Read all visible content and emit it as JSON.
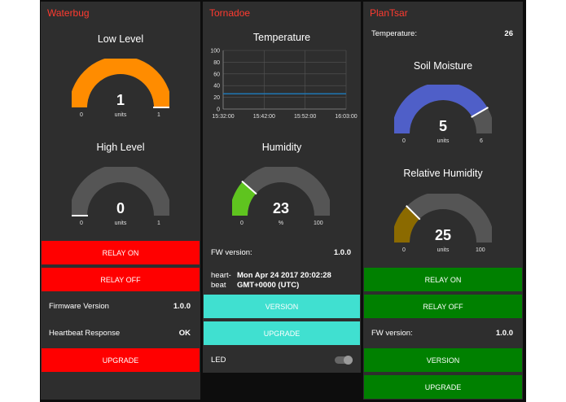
{
  "colors": {
    "accent": "#ff3b30",
    "relay_red": "#ff0000",
    "teal": "#40e0d0",
    "green": "#008000",
    "gauge_orange": "#ff8c00",
    "gauge_green": "#5fc41f",
    "gauge_blue": "#4f5fc8",
    "gauge_olive": "#8b6a00",
    "gauge_track": "#555555",
    "series_line": "#1f77b4"
  },
  "waterbug": {
    "title": "Waterbug",
    "low_level": {
      "label": "Low Level",
      "value": "1",
      "units": "units",
      "min": "0",
      "max": "1",
      "fraction": 1.0
    },
    "high_level": {
      "label": "High Level",
      "value": "0",
      "units": "units",
      "min": "0",
      "max": "1",
      "fraction": 0.0
    },
    "relay_on": "RELAY ON",
    "relay_off": "RELAY OFF",
    "firmware": {
      "label": "Firmware Version",
      "value": "1.0.0"
    },
    "heartbeat": {
      "label": "Heartbeat Response",
      "value": "OK"
    },
    "upgrade": "UPGRADE"
  },
  "tornadoe": {
    "title": "Tornadoe",
    "temperature": {
      "label": "Temperature"
    },
    "humidity": {
      "label": "Humidity",
      "value": "23",
      "units": "%",
      "min": "0",
      "max": "100",
      "fraction": 0.23
    },
    "fw": {
      "label": "FW version:",
      "value": "1.0.0"
    },
    "heartbeat": {
      "label_line1": "heart-",
      "label_line2": "beat",
      "value_line1": "Mon Apr 24 2017 20:02:28",
      "value_line2": "GMT+0000 (UTC)"
    },
    "version": "VERSION",
    "upgrade": "UPGRADE",
    "led": {
      "label": "LED",
      "on": false
    }
  },
  "plantsar": {
    "title": "PlanTsar",
    "temperature": {
      "label": "Temperature:",
      "value": "26"
    },
    "soil_moisture": {
      "label": "Soil Moisture",
      "value": "5",
      "units": "units",
      "min": "0",
      "max": "6",
      "fraction": 0.8333
    },
    "relative_humidity": {
      "label": "Relative Humidity",
      "value": "25",
      "units": "units",
      "min": "0",
      "max": "100",
      "fraction": 0.25
    },
    "relay_on": "RELAY ON",
    "relay_off": "RELAY OFF",
    "fw": {
      "label": "FW version:",
      "value": "1.0.0"
    },
    "version": "VERSION",
    "upgrade": "UPGRADE"
  },
  "chart_data": {
    "type": "line",
    "title": "Temperature",
    "x": [
      "15:32:00",
      "15:42:00",
      "15:52:00",
      "16:03:00"
    ],
    "ylim": [
      0,
      100
    ],
    "yticks": [
      "100",
      "80",
      "60",
      "40",
      "20",
      "0"
    ],
    "series": [
      {
        "values": [
          26,
          26,
          26,
          26
        ]
      }
    ],
    "grid": true
  }
}
